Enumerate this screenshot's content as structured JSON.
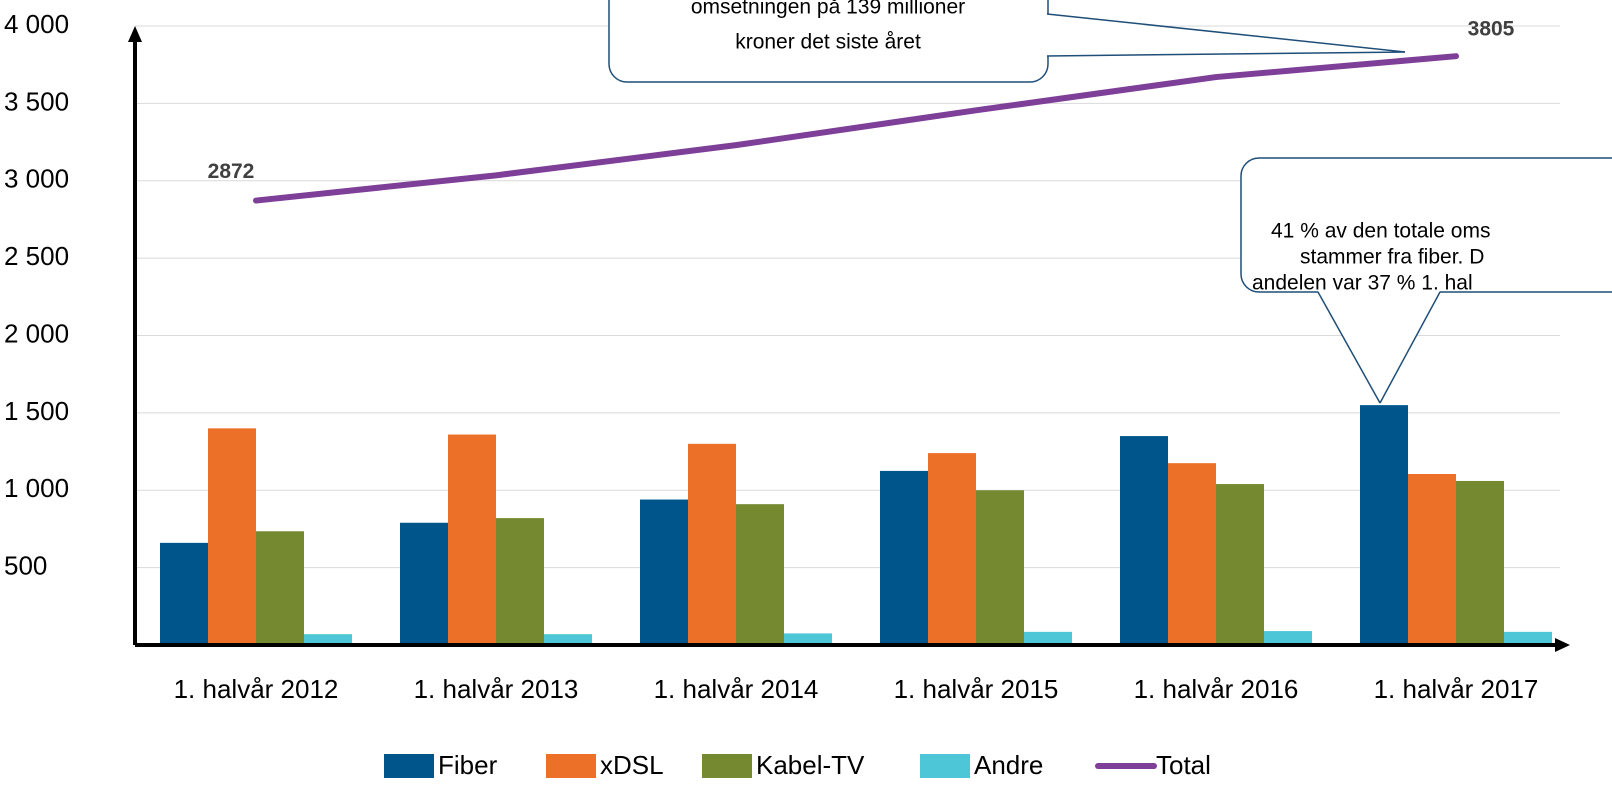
{
  "chart_data": {
    "type": "bar",
    "categories": [
      "1. halvår 2012",
      "1. halvår 2013",
      "1. halvår 2014",
      "1. halvår 2015",
      "1. halvår 2016",
      "1. halvår 2017"
    ],
    "series": [
      {
        "name": "Fiber",
        "color": "#00558a",
        "values": [
          660,
          790,
          940,
          1125,
          1350,
          1550
        ]
      },
      {
        "name": "xDSL",
        "color": "#ed7028",
        "values": [
          1400,
          1360,
          1300,
          1240,
          1175,
          1105
        ]
      },
      {
        "name": "Kabel-TV",
        "color": "#758a30",
        "values": [
          735,
          820,
          910,
          1000,
          1040,
          1060
        ]
      },
      {
        "name": "Andre",
        "color": "#4dc7d8",
        "values": [
          70,
          70,
          75,
          85,
          90,
          85
        ]
      },
      {
        "name": "Total",
        "color": "#7e3f98",
        "type": "line",
        "values": [
          2872,
          3035,
          3230,
          3455,
          3670,
          3805
        ]
      }
    ],
    "ylim": [
      0,
      4000
    ],
    "yticks": [
      500,
      {
        "value": 1000,
        "label": "1 000"
      },
      {
        "value": 1500,
        "label": "1 500"
      },
      {
        "value": 2000,
        "label": "2 000"
      },
      {
        "value": 2500,
        "label": "2 500"
      },
      {
        "value": 3000,
        "label": "3 000"
      },
      {
        "value": 3500,
        "label": "3 500"
      },
      {
        "value": 4000,
        "label": "4 000"
      }
    ],
    "grid": true,
    "legend": "bottom",
    "annotations": [
      {
        "lines": [
          "omsetningen på 139 millioner",
          "kroner det siste året"
        ]
      },
      {
        "lines": [
          "41 % av den totale oms",
          "stammer fra fiber. D",
          "andelen var 37 % 1. hal"
        ]
      }
    ]
  }
}
